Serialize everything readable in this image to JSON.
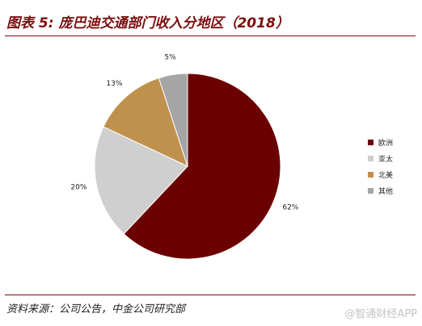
{
  "header": {
    "title": "图表 5: 庞巴迪交通部门收入分地区（2018）"
  },
  "footer": {
    "source": "资料来源：公司公告，中金公司研究部",
    "watermark": "@智通财经APP"
  },
  "chart_data": {
    "type": "pie",
    "slices": [
      {
        "label": "欧洲",
        "value": 62,
        "display": "62%",
        "color": "#6b0000"
      },
      {
        "label": "亚太",
        "value": 20,
        "display": "20%",
        "color": "#cfcfcf"
      },
      {
        "label": "北美",
        "value": 13,
        "display": "13%",
        "color": "#c0904d"
      },
      {
        "label": "其他",
        "value": 5,
        "display": "5%",
        "color": "#a5a5a5"
      }
    ],
    "legend_position": "right"
  }
}
